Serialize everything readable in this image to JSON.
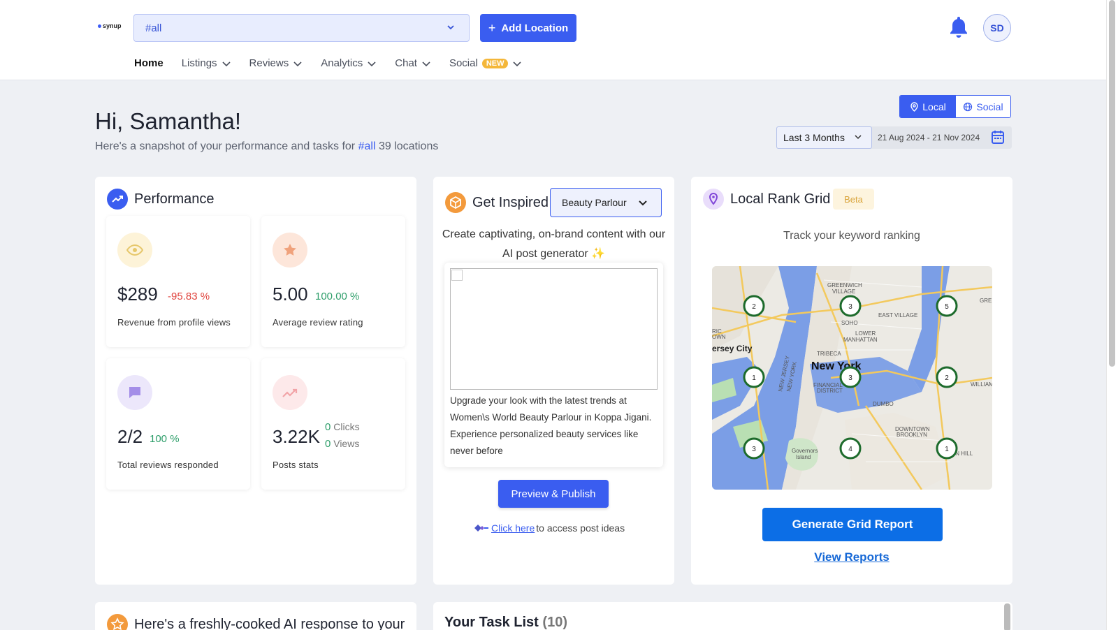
{
  "header": {
    "logo_text": "synup",
    "location_value": "#all",
    "add_location_label": "Add Location",
    "avatar_initials": "SD"
  },
  "nav": {
    "home": "Home",
    "listings": "Listings",
    "reviews": "Reviews",
    "analytics": "Analytics",
    "chat": "Chat",
    "social": "Social",
    "social_badge": "NEW"
  },
  "greeting": {
    "title": "Hi, Samantha!",
    "snapshot_prefix": "Here's a snapshot of your performance and tasks for",
    "snapshot_tag": "#all",
    "snapshot_suffix": "39 locations"
  },
  "view_toggle": {
    "local": "Local",
    "social": "Social",
    "selected": "Local"
  },
  "date_range": {
    "preset": "Last 3 Months",
    "dates": "21 Aug 2024 - 21 Nov 2024"
  },
  "performance": {
    "title": "Performance",
    "metrics": [
      {
        "value": "$289",
        "change": "-95.83 %",
        "label": "Revenue from profile views",
        "icon": "eye-icon",
        "change_color": "#e0443e"
      },
      {
        "value": "5.00",
        "change": "100.00 %",
        "label": "Average review rating",
        "icon": "star-icon",
        "change_color": "#2e9e6a"
      },
      {
        "value": "2/2",
        "change": "100 %",
        "label": "Total reviews responded",
        "icon": "chat-bubble-icon",
        "change_color": "#2e9e6a"
      },
      {
        "value": "3.22K",
        "clicks_count": "0",
        "clicks_label": "Clicks",
        "views_count": "0",
        "views_label": "Views",
        "label": "Posts stats",
        "icon": "trend-up-icon"
      }
    ]
  },
  "inspired": {
    "title": "Get Inspired",
    "category": "Beauty Parlour",
    "description": "Create captivating, on-brand content with our AI post generator",
    "post_text": "Upgrade your look with the latest trends at Women\\s World Beauty Parlour in Koppa Jigani. Experience personalized beauty services like never before",
    "preview_label": "Preview & Publish",
    "click_here": "Click here",
    "click_suffix": "to access post ideas"
  },
  "rank_grid": {
    "title": "Local Rank Grid",
    "badge": "Beta",
    "subtitle": "Track your keyword ranking",
    "generate_label": "Generate Grid Report",
    "view_reports_label": "View Reports",
    "map_labels": {
      "greenwich": "GREENWICH",
      "village": "VILLAGE",
      "soho": "SOHO",
      "east_village": "EAST VILLAGE",
      "lower": "LOWER",
      "manhattan": "MANHATTAN",
      "jersey_city": "ersey City",
      "tribeca": "TRIBECA",
      "new_york": "New York",
      "financial": "FINANCIAL",
      "district": "DISTRICT",
      "dumbo": "DUMBO",
      "downtown": "DOWNTOWN",
      "brooklyn": "BROOKLYN",
      "governors": "Governors",
      "island": "Island",
      "williams": "WILLIAMS",
      "hill": "ON HILL",
      "ric": "RIC",
      "own": "OWN",
      "new_jersey": "NEW JERSEY",
      "new_york_v": "NEW YORK",
      "gre": "GRE"
    },
    "pins": [
      "2",
      "3",
      "5",
      "1",
      "3",
      "2",
      "3",
      "4",
      "1"
    ]
  },
  "ai_response": {
    "title": "Here's a freshly-cooked AI response to your"
  },
  "tasks": {
    "title": "Your Task List",
    "count": "(10)"
  },
  "colors": {
    "accent": "#3a5df0",
    "pin_ring": "#1d6b2c",
    "gen_button": "#0c6ee6"
  }
}
